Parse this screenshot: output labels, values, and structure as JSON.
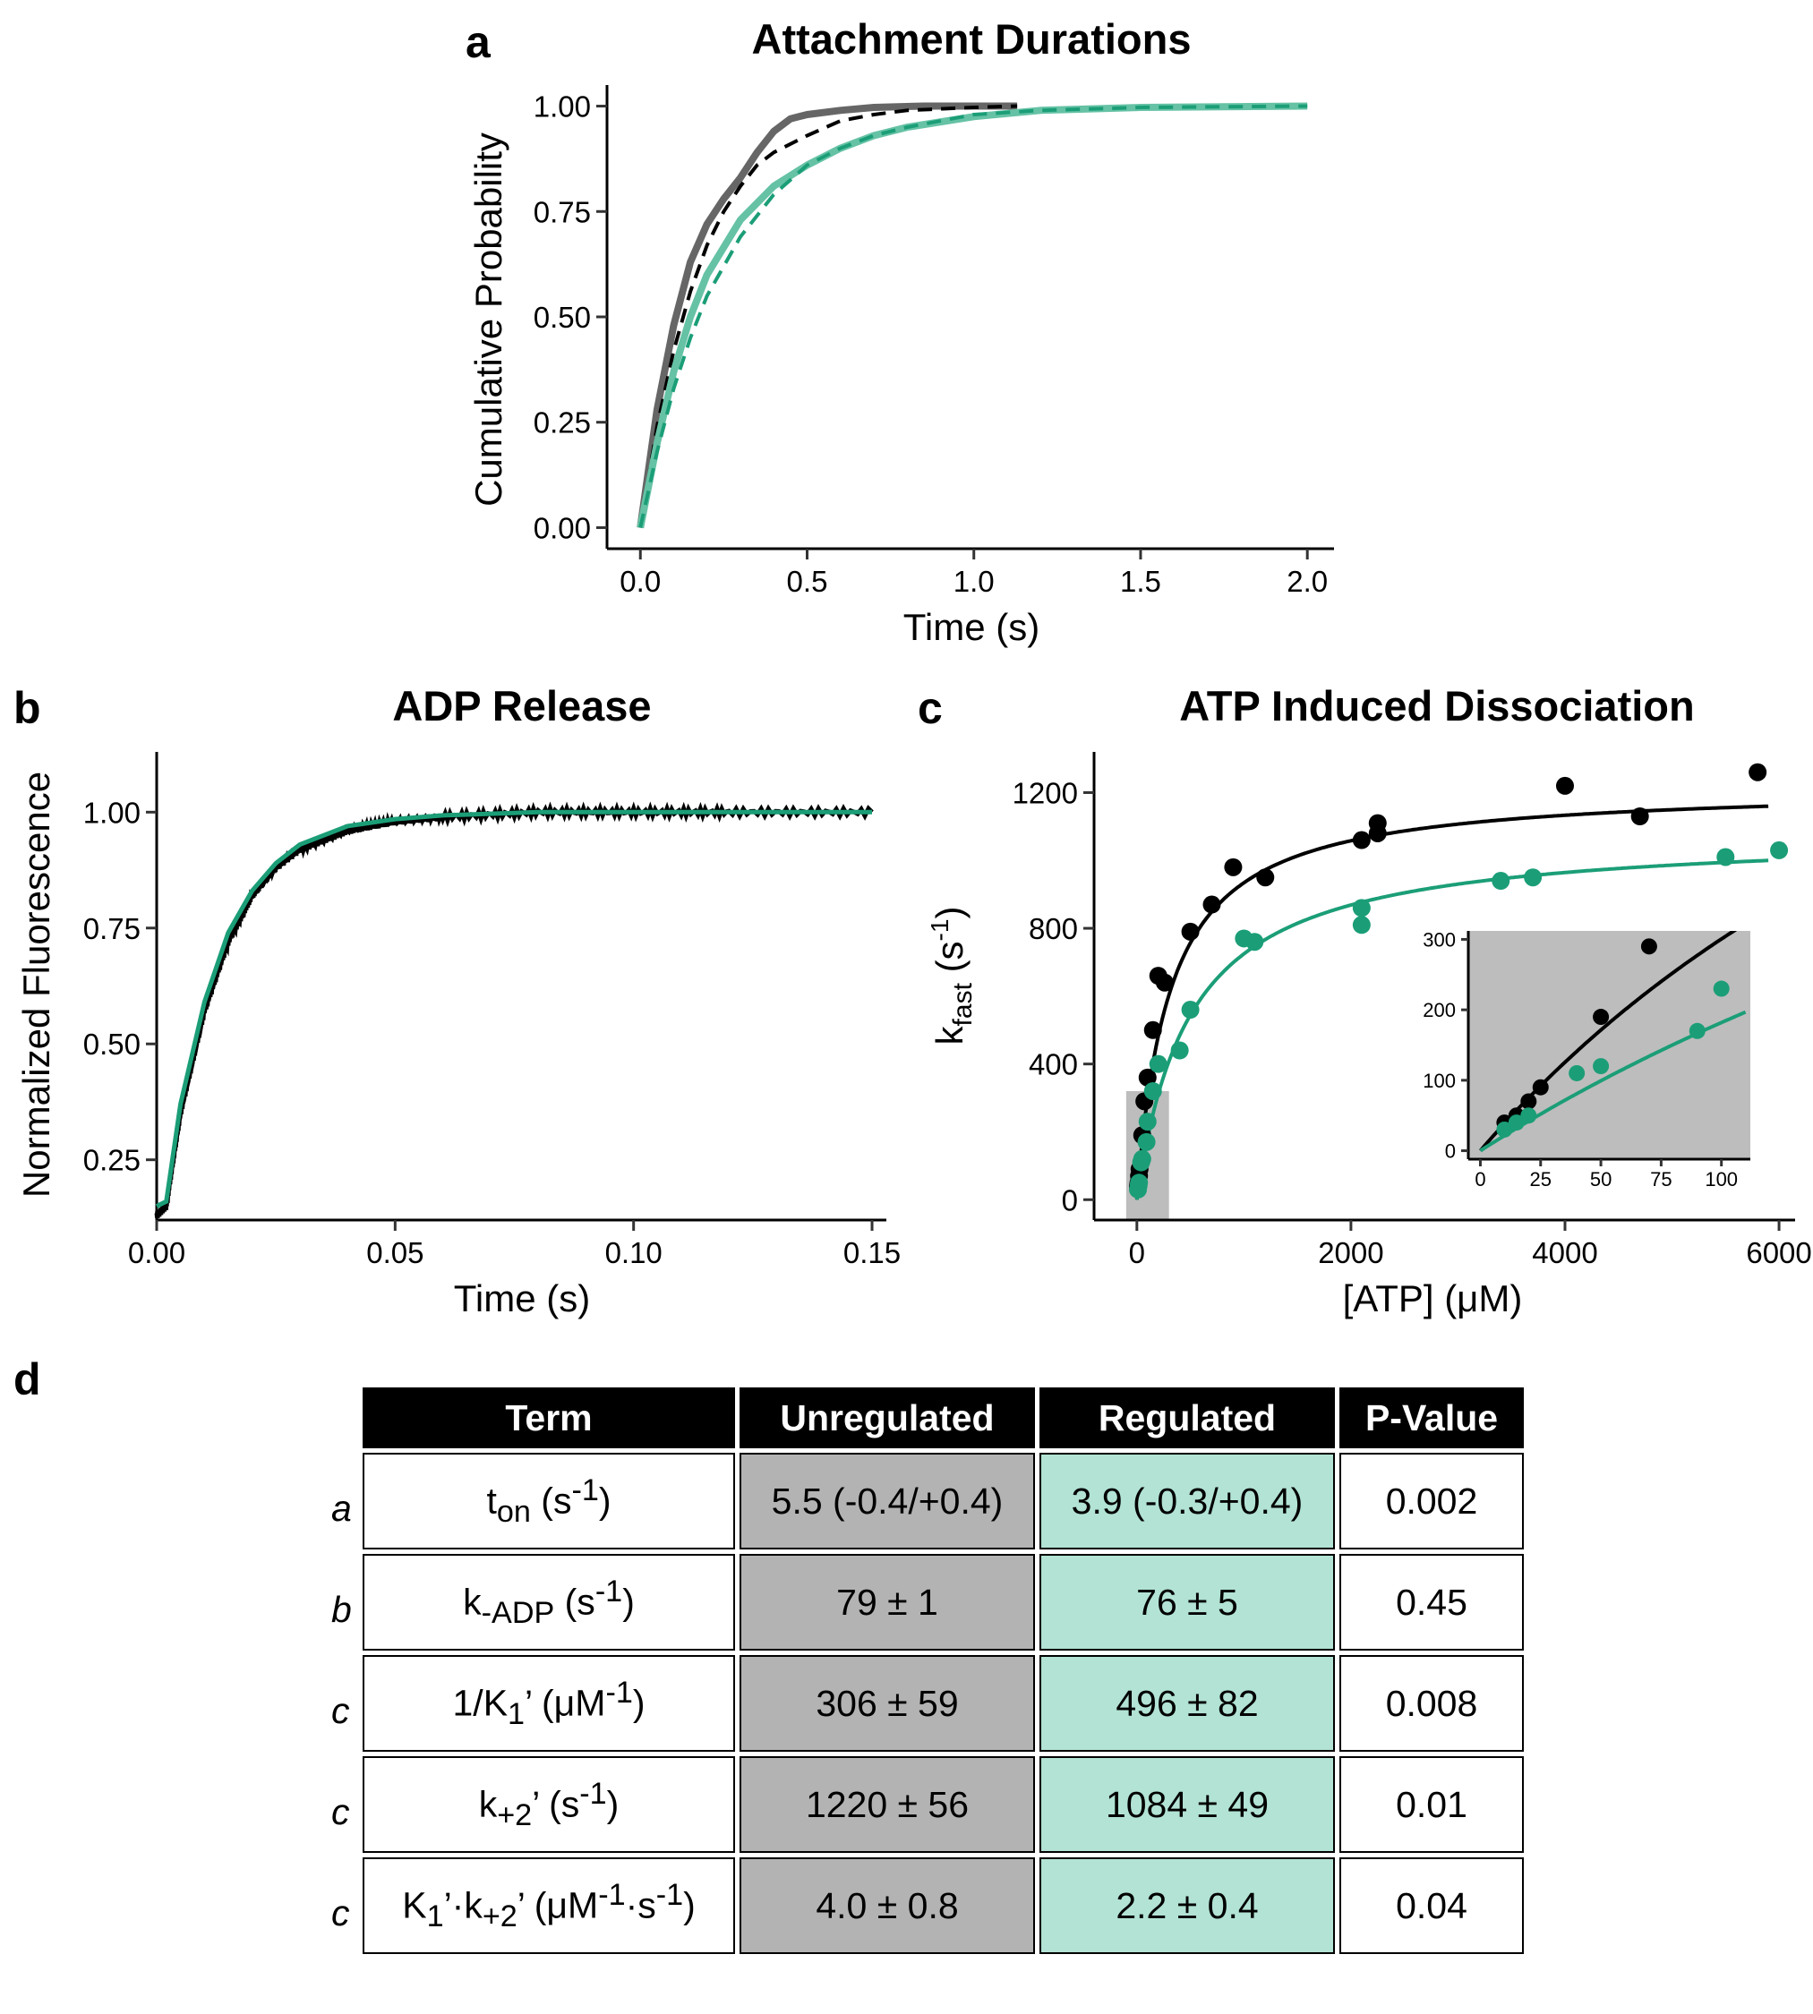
{
  "colors": {
    "unregulated": "#000000",
    "unregulated_cdf": "#666666",
    "regulated": "#1b9e77",
    "regulated_cdf": "#66c2a5",
    "inset_bg": "#bdbdbd",
    "table_unreg": "#b3b3b3",
    "table_reg": "#b2e3d5"
  },
  "panels": {
    "a": "a",
    "b": "b",
    "c": "c",
    "d": "d"
  },
  "chart_data": [
    {
      "type": "line",
      "panel": "a",
      "title": "Attachment Durations",
      "xlabel": "Time (s)",
      "ylabel": "Cumulative Probability",
      "xlim": [
        -0.1,
        2.08
      ],
      "ylim": [
        -0.05,
        1.05
      ],
      "xticks": [
        "0.0",
        "0.5",
        "1.0",
        "1.5",
        "2.0"
      ],
      "yticks": [
        "0.00",
        "0.25",
        "0.50",
        "0.75",
        "1.00"
      ],
      "series": [
        {
          "color": "unregulated_cdf",
          "style": "solid",
          "x": [
            0,
            0.05,
            0.1,
            0.15,
            0.2,
            0.25,
            0.3,
            0.35,
            0.4,
            0.45,
            0.5,
            0.6,
            0.7,
            0.85,
            1.0,
            1.13
          ],
          "y": [
            0,
            0.28,
            0.48,
            0.63,
            0.72,
            0.78,
            0.83,
            0.89,
            0.94,
            0.97,
            0.98,
            0.99,
            0.997,
            1.0,
            1.0,
            1.0
          ]
        },
        {
          "color": "unregulated",
          "style": "dashed",
          "x": [
            0,
            0.05,
            0.1,
            0.15,
            0.2,
            0.25,
            0.3,
            0.35,
            0.4,
            0.5,
            0.6,
            0.7,
            0.8,
            1.0,
            1.13
          ],
          "y": [
            0,
            0.24,
            0.42,
            0.56,
            0.67,
            0.75,
            0.81,
            0.86,
            0.89,
            0.93,
            0.965,
            0.98,
            0.99,
            0.997,
            1.0
          ]
        },
        {
          "color": "regulated_cdf",
          "style": "solid",
          "x": [
            0,
            0.05,
            0.1,
            0.15,
            0.2,
            0.3,
            0.4,
            0.5,
            0.6,
            0.7,
            0.8,
            1.0,
            1.2,
            1.5,
            2.0
          ],
          "y": [
            0,
            0.2,
            0.37,
            0.5,
            0.6,
            0.73,
            0.81,
            0.86,
            0.9,
            0.93,
            0.95,
            0.975,
            0.99,
            0.997,
            1.0
          ]
        },
        {
          "color": "regulated",
          "style": "dashed",
          "x": [
            0,
            0.05,
            0.1,
            0.15,
            0.2,
            0.3,
            0.4,
            0.5,
            0.6,
            0.7,
            0.8,
            1.0,
            1.2,
            1.5,
            2.0
          ],
          "y": [
            0,
            0.18,
            0.33,
            0.45,
            0.55,
            0.69,
            0.79,
            0.86,
            0.9,
            0.93,
            0.95,
            0.98,
            0.99,
            0.997,
            1.0
          ]
        }
      ]
    },
    {
      "type": "line",
      "panel": "b",
      "title": "ADP Release",
      "xlabel": "Time (s)",
      "ylabel": "Normalized Fluorescence",
      "xlim": [
        0,
        0.153
      ],
      "ylim": [
        0.12,
        1.13
      ],
      "xticks": [
        "0.00",
        "0.05",
        "0.10",
        "0.15"
      ],
      "yticks": [
        "0.25",
        "0.50",
        "0.75",
        "1.00"
      ],
      "series": [
        {
          "color": "unregulated",
          "style": "noisy",
          "x": [
            0,
            0.002,
            0.005,
            0.01,
            0.015,
            0.02,
            0.025,
            0.03,
            0.04,
            0.05,
            0.06,
            0.08,
            0.1,
            0.12,
            0.15
          ],
          "y": [
            0.13,
            0.15,
            0.35,
            0.57,
            0.72,
            0.82,
            0.88,
            0.92,
            0.96,
            0.98,
            0.99,
            1.0,
            1.0,
            1.0,
            1.0
          ]
        },
        {
          "color": "regulated",
          "style": "solid",
          "x": [
            0,
            0.002,
            0.005,
            0.01,
            0.015,
            0.02,
            0.025,
            0.03,
            0.04,
            0.05,
            0.06,
            0.08,
            0.1,
            0.12,
            0.15
          ],
          "y": [
            0.15,
            0.16,
            0.37,
            0.59,
            0.74,
            0.83,
            0.89,
            0.93,
            0.97,
            0.985,
            0.993,
            1.0,
            1.0,
            1.0,
            1.0
          ]
        }
      ]
    },
    {
      "type": "scatter",
      "panel": "c",
      "title": "ATP Induced Dissociation",
      "xlabel": "[ATP] (μM)",
      "ylabel": "k",
      "ylabel_sub": "fast",
      "ylabel_unit_open": " (s",
      "ylabel_sup": "-1",
      "ylabel_unit_close": ")",
      "xlim": [
        -400,
        6150
      ],
      "ylim": [
        -60,
        1320
      ],
      "xticks": [
        "0",
        "2000",
        "4000",
        "6000"
      ],
      "yticks": [
        "0",
        "400",
        "800",
        "1200"
      ],
      "series": [
        {
          "color": "unregulated",
          "points": [
            [
              10,
              40
            ],
            [
              15,
              50
            ],
            [
              20,
              70
            ],
            [
              25,
              90
            ],
            [
              50,
              190
            ],
            [
              70,
              290
            ],
            [
              100,
              360
            ],
            [
              150,
              500
            ],
            [
              200,
              660
            ],
            [
              260,
              640
            ],
            [
              500,
              790
            ],
            [
              700,
              870
            ],
            [
              900,
              980
            ],
            [
              1200,
              950
            ],
            [
              2100,
              1060
            ],
            [
              2250,
              1080
            ],
            [
              2250,
              1110
            ],
            [
              4000,
              1220
            ],
            [
              4700,
              1130
            ],
            [
              5800,
              1260
            ]
          ],
          "fit_vmax": 1220,
          "fit_k": 306
        },
        {
          "color": "regulated",
          "points": [
            [
              10,
              30
            ],
            [
              15,
              40
            ],
            [
              20,
              50
            ],
            [
              40,
              110
            ],
            [
              50,
              120
            ],
            [
              90,
              170
            ],
            [
              100,
              230
            ],
            [
              150,
              320
            ],
            [
              200,
              400
            ],
            [
              400,
              440
            ],
            [
              500,
              560
            ],
            [
              1000,
              770
            ],
            [
              1100,
              760
            ],
            [
              2100,
              860
            ],
            [
              2100,
              810
            ],
            [
              3400,
              940
            ],
            [
              3700,
              950
            ],
            [
              5500,
              1010
            ],
            [
              6000,
              1030
            ]
          ],
          "fit_vmax": 1084,
          "fit_k": 496
        }
      ],
      "inset": {
        "xlim": [
          -5,
          112
        ],
        "ylim": [
          -12,
          312
        ],
        "xticks": [
          "0",
          "25",
          "50",
          "75",
          "100"
        ],
        "yticks": [
          "0",
          "100",
          "200",
          "300"
        ],
        "highlight_x": [
          -100,
          300
        ],
        "highlight_y": [
          -60,
          320
        ]
      }
    }
  ],
  "table": {
    "headers": [
      "Term",
      "Unregulated",
      "Regulated",
      "P-Value"
    ],
    "rows": [
      {
        "panel": "a",
        "term_main": "t",
        "term_sub": "on",
        "term_open": " (s",
        "term_sup": "-1",
        "term_close": ")",
        "unreg": "5.5 (-0.4/+0.4)",
        "reg": "3.9 (-0.3/+0.4)",
        "p": "0.002"
      },
      {
        "panel": "b",
        "term_main": "k",
        "term_sub": "-ADP",
        "term_open": " (s",
        "term_sup": "-1",
        "term_close": ")",
        "unreg": "79 ± 1",
        "reg": "76 ± 5",
        "p": "0.45"
      },
      {
        "panel": "c",
        "term_main": "1/K",
        "term_sub": "1",
        "term_open": "’ (μM",
        "term_sup": "-1",
        "term_close": ")",
        "unreg": "306 ± 59",
        "reg": "496 ± 82",
        "p": "0.008"
      },
      {
        "panel": "c",
        "term_main": "k",
        "term_sub": "+2",
        "term_open": "’ (s",
        "term_sup": "-1",
        "term_close": ")",
        "unreg": "1220 ± 56",
        "reg": "1084 ± 49",
        "p": "0.01"
      },
      {
        "panel": "c",
        "term_main": "K",
        "term_sub": "1",
        "term_open": "’·k",
        "term_sub2": "+2",
        "term_open2": "’ (μM",
        "term_sup": "-1",
        "term_mid": "·s",
        "term_sup2": "-1",
        "term_close": ")",
        "unreg": "4.0 ± 0.8",
        "reg": "2.2 ± 0.4",
        "p": "0.04"
      }
    ]
  }
}
